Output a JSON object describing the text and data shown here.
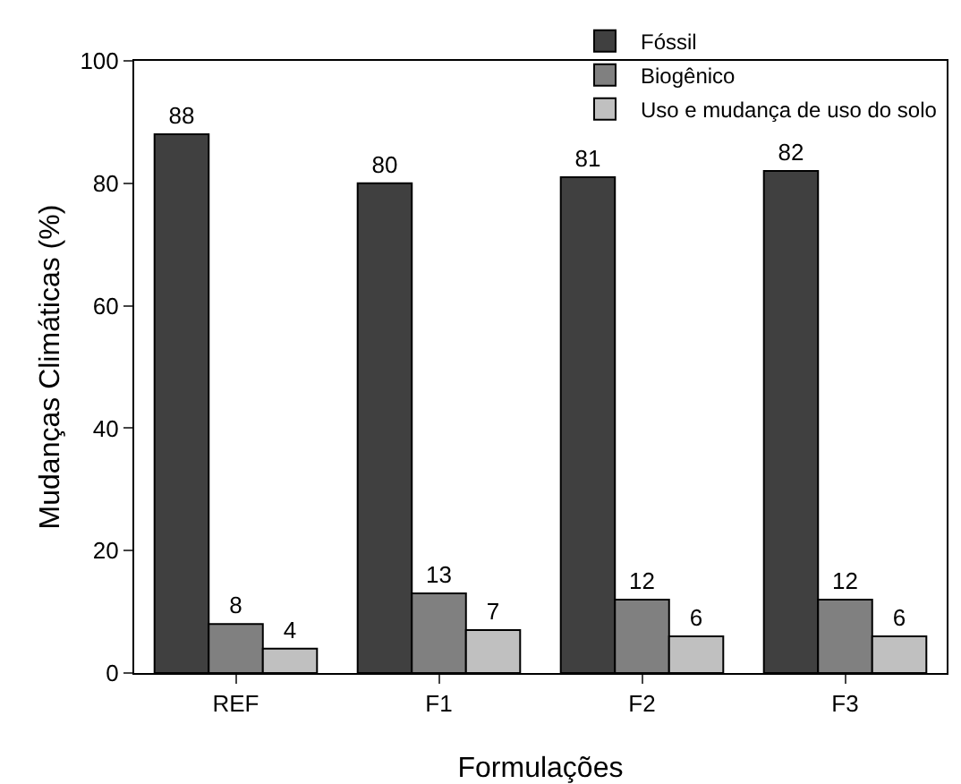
{
  "chart_data": {
    "type": "bar",
    "xlabel": "Formulações",
    "ylabel": "Mudanças Climáticas (%)",
    "categories": [
      "REF",
      "F1",
      "F2",
      "F3"
    ],
    "series": [
      {
        "name": "Fóssil",
        "color": "#404040",
        "values": [
          88,
          80,
          81,
          82
        ]
      },
      {
        "name": "Biogênico",
        "color": "#808080",
        "values": [
          8,
          13,
          12,
          12
        ]
      },
      {
        "name": "Uso e mudança de uso do solo",
        "color": "#c0c0c0",
        "values": [
          4,
          7,
          6,
          6
        ]
      }
    ],
    "ylim": [
      0,
      100
    ],
    "yticks": [
      0,
      20,
      40,
      60,
      80,
      100
    ],
    "grid": false,
    "legend": "top right",
    "data_labels": true
  }
}
